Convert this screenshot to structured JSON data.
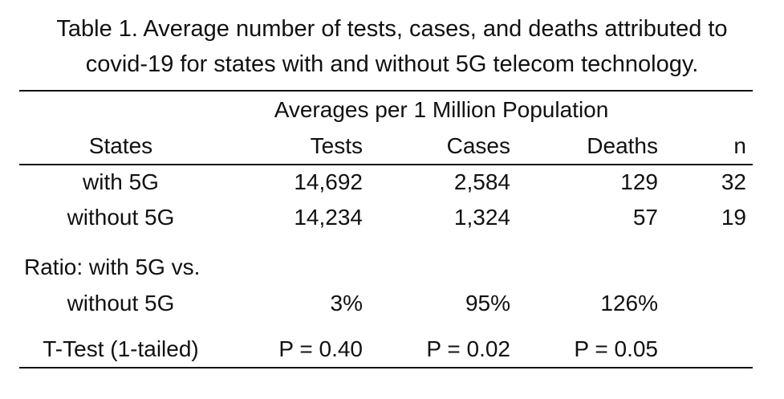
{
  "caption": {
    "line1": "Table 1.  Average number of tests, cases, and deaths attributed to",
    "line2": "covid-19 for states with and without 5G telecom technology."
  },
  "table": {
    "group_header": "Averages per 1 Million Population",
    "columns": {
      "states": "States",
      "tests": "Tests",
      "cases": "Cases",
      "deaths": "Deaths",
      "n": "n"
    },
    "rows": [
      {
        "label": "with 5G",
        "tests": "14,692",
        "cases": "2,584",
        "deaths": "129",
        "n": "32"
      },
      {
        "label": "without 5G",
        "tests": "14,234",
        "cases": "1,324",
        "deaths": "57",
        "n": "19"
      }
    ],
    "ratio": {
      "label_line1": "Ratio: with 5G vs.",
      "label_line2": "without 5G",
      "tests": "3%",
      "cases": "95%",
      "deaths": "126%"
    },
    "ttest": {
      "label": "T-Test (1-tailed)",
      "tests": "P = 0.40",
      "cases": "P = 0.02",
      "deaths": "P = 0.05"
    }
  }
}
